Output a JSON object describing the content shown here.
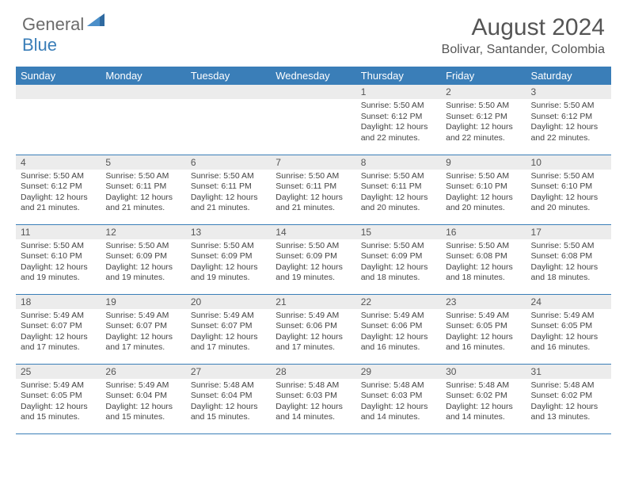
{
  "logo": {
    "general": "General",
    "blue": "Blue"
  },
  "title": "August 2024",
  "location": "Bolivar, Santander, Colombia",
  "colors": {
    "header_bg": "#3a7eb8",
    "header_text": "#ffffff",
    "daynum_bg": "#ececec",
    "border": "#3a7eb8",
    "body_bg": "#ffffff",
    "text": "#444444"
  },
  "day_names": [
    "Sunday",
    "Monday",
    "Tuesday",
    "Wednesday",
    "Thursday",
    "Friday",
    "Saturday"
  ],
  "weeks": [
    [
      null,
      null,
      null,
      null,
      {
        "n": "1",
        "sr": "5:50 AM",
        "ss": "6:12 PM",
        "dl": "12 hours and 22 minutes."
      },
      {
        "n": "2",
        "sr": "5:50 AM",
        "ss": "6:12 PM",
        "dl": "12 hours and 22 minutes."
      },
      {
        "n": "3",
        "sr": "5:50 AM",
        "ss": "6:12 PM",
        "dl": "12 hours and 22 minutes."
      }
    ],
    [
      {
        "n": "4",
        "sr": "5:50 AM",
        "ss": "6:12 PM",
        "dl": "12 hours and 21 minutes."
      },
      {
        "n": "5",
        "sr": "5:50 AM",
        "ss": "6:11 PM",
        "dl": "12 hours and 21 minutes."
      },
      {
        "n": "6",
        "sr": "5:50 AM",
        "ss": "6:11 PM",
        "dl": "12 hours and 21 minutes."
      },
      {
        "n": "7",
        "sr": "5:50 AM",
        "ss": "6:11 PM",
        "dl": "12 hours and 21 minutes."
      },
      {
        "n": "8",
        "sr": "5:50 AM",
        "ss": "6:11 PM",
        "dl": "12 hours and 20 minutes."
      },
      {
        "n": "9",
        "sr": "5:50 AM",
        "ss": "6:10 PM",
        "dl": "12 hours and 20 minutes."
      },
      {
        "n": "10",
        "sr": "5:50 AM",
        "ss": "6:10 PM",
        "dl": "12 hours and 20 minutes."
      }
    ],
    [
      {
        "n": "11",
        "sr": "5:50 AM",
        "ss": "6:10 PM",
        "dl": "12 hours and 19 minutes."
      },
      {
        "n": "12",
        "sr": "5:50 AM",
        "ss": "6:09 PM",
        "dl": "12 hours and 19 minutes."
      },
      {
        "n": "13",
        "sr": "5:50 AM",
        "ss": "6:09 PM",
        "dl": "12 hours and 19 minutes."
      },
      {
        "n": "14",
        "sr": "5:50 AM",
        "ss": "6:09 PM",
        "dl": "12 hours and 19 minutes."
      },
      {
        "n": "15",
        "sr": "5:50 AM",
        "ss": "6:09 PM",
        "dl": "12 hours and 18 minutes."
      },
      {
        "n": "16",
        "sr": "5:50 AM",
        "ss": "6:08 PM",
        "dl": "12 hours and 18 minutes."
      },
      {
        "n": "17",
        "sr": "5:50 AM",
        "ss": "6:08 PM",
        "dl": "12 hours and 18 minutes."
      }
    ],
    [
      {
        "n": "18",
        "sr": "5:49 AM",
        "ss": "6:07 PM",
        "dl": "12 hours and 17 minutes."
      },
      {
        "n": "19",
        "sr": "5:49 AM",
        "ss": "6:07 PM",
        "dl": "12 hours and 17 minutes."
      },
      {
        "n": "20",
        "sr": "5:49 AM",
        "ss": "6:07 PM",
        "dl": "12 hours and 17 minutes."
      },
      {
        "n": "21",
        "sr": "5:49 AM",
        "ss": "6:06 PM",
        "dl": "12 hours and 17 minutes."
      },
      {
        "n": "22",
        "sr": "5:49 AM",
        "ss": "6:06 PM",
        "dl": "12 hours and 16 minutes."
      },
      {
        "n": "23",
        "sr": "5:49 AM",
        "ss": "6:05 PM",
        "dl": "12 hours and 16 minutes."
      },
      {
        "n": "24",
        "sr": "5:49 AM",
        "ss": "6:05 PM",
        "dl": "12 hours and 16 minutes."
      }
    ],
    [
      {
        "n": "25",
        "sr": "5:49 AM",
        "ss": "6:05 PM",
        "dl": "12 hours and 15 minutes."
      },
      {
        "n": "26",
        "sr": "5:49 AM",
        "ss": "6:04 PM",
        "dl": "12 hours and 15 minutes."
      },
      {
        "n": "27",
        "sr": "5:48 AM",
        "ss": "6:04 PM",
        "dl": "12 hours and 15 minutes."
      },
      {
        "n": "28",
        "sr": "5:48 AM",
        "ss": "6:03 PM",
        "dl": "12 hours and 14 minutes."
      },
      {
        "n": "29",
        "sr": "5:48 AM",
        "ss": "6:03 PM",
        "dl": "12 hours and 14 minutes."
      },
      {
        "n": "30",
        "sr": "5:48 AM",
        "ss": "6:02 PM",
        "dl": "12 hours and 14 minutes."
      },
      {
        "n": "31",
        "sr": "5:48 AM",
        "ss": "6:02 PM",
        "dl": "12 hours and 13 minutes."
      }
    ]
  ],
  "labels": {
    "sunrise": "Sunrise:",
    "sunset": "Sunset:",
    "daylight": "Daylight:"
  }
}
